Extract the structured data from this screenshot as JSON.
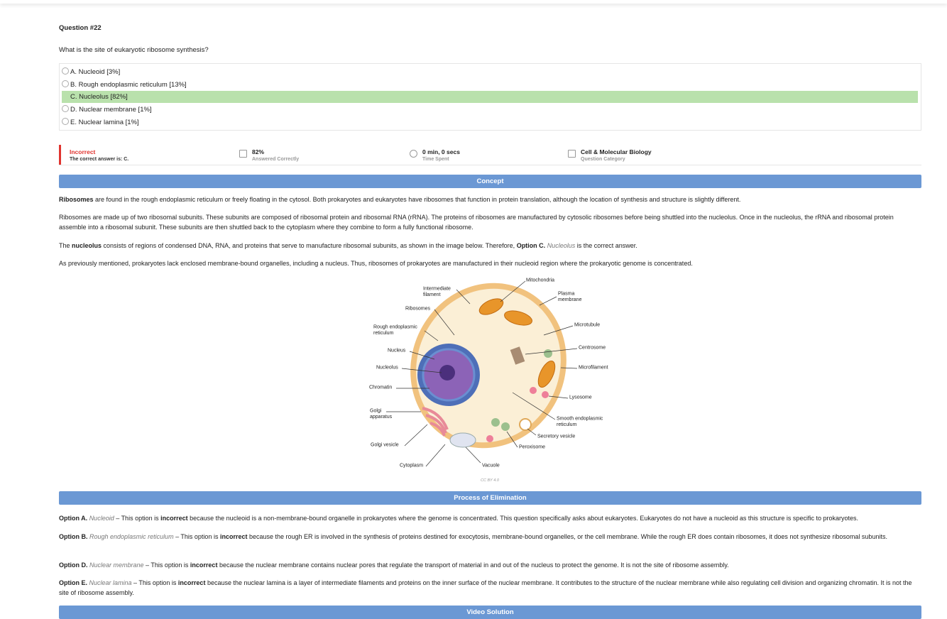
{
  "question": {
    "number": "Question #22",
    "text": "What is the site of eukaryotic ribosome synthesis?",
    "options": [
      "A. Nucleoid [3%]",
      "B. Rough endoplasmic reticulum [13%]",
      "C. Nucleolus [82%]",
      "D. Nuclear membrane [1%]",
      "E. Nuclear lamina [1%]"
    ],
    "highlighted_option": 2
  },
  "stats": [
    {
      "value": "Incorrect",
      "label": "The correct answer is: C."
    },
    {
      "value": "82%",
      "label": "Answered Correctly"
    },
    {
      "value": "0 min, 0 secs",
      "label": "Time Spent"
    },
    {
      "value": "Cell & Molecular Biology",
      "label": "Question Category"
    }
  ],
  "concept": {
    "title": "Concept",
    "paragraphs": [
      [
        {
          "text": "Ribosomes",
          "style": "bold"
        },
        " are found in the rough endoplasmic reticulum or freely floating in the cytosol. Both prokaryotes and eukaryotes have ribosomes that function in protein translation, although the location of synthesis and structure is slightly different."
      ],
      [
        "Ribosomes are made up of two ribosomal subunits. These subunits are composed of ribosomal protein and ribosomal RNA (rRNA). The proteins of ribosomes are manufactured by cytosolic ribosomes before being shuttled into the nucleolus. Once in the nucleolus, the rRNA and ribosomal protein assemble into a ribosomal subunit. These subunits are then shuttled back to the cytoplasm where they combine to form a fully functional ribosome."
      ],
      [
        "The ",
        {
          "text": "nucleolus",
          "style": "bold"
        },
        " consists of regions of condensed DNA, RNA, and proteins that serve to manufacture ribosomal subunits, as shown in the image below. Therefore, ",
        {
          "text": "Option C.",
          "style": "bold"
        },
        " ",
        {
          "text": "Nucleolus",
          "style": "italic"
        },
        " is the correct answer."
      ],
      [
        "As previously mentioned, prokaryotes lack enclosed membrane-bound organelles, including a nucleus. Thus, ribosomes of prokaryotes are manufactured in their nucleoid region where the prokaryotic genome is concentrated."
      ]
    ]
  },
  "diagram": {
    "labels": [
      [
        "Mitochondria"
      ],
      [
        "Intermediate",
        "filament"
      ],
      [
        "Plasma",
        "membrane"
      ],
      [
        "Ribosomes"
      ],
      [
        "Rough endoplasmic",
        "reticulum"
      ],
      [
        "Microtubule"
      ],
      [
        "Nucleus"
      ],
      [
        "Centrosome"
      ],
      [
        "Nucleolus"
      ],
      [
        "Microfilament"
      ],
      [
        "Chromatin"
      ],
      [
        "Lysosome"
      ],
      [
        "Golgi",
        "apparatus"
      ],
      [
        "Smooth endoplasmic",
        "reticulum"
      ],
      [
        "Secretory vesicle"
      ],
      [
        "Golgi vesicle"
      ],
      [
        "Peroxisome"
      ],
      [
        "Cytoplasm"
      ],
      [
        "Vacuole"
      ]
    ],
    "credit": "CC BY 4.0"
  },
  "elimination": {
    "title": "Process of Elimination",
    "paragraphs": [
      [
        {
          "text": "Option A.",
          "style": "bold"
        },
        " ",
        {
          "text": "Nucleoid",
          "style": "italic"
        },
        " – This option is ",
        {
          "text": "incorrect",
          "style": "bold"
        },
        " because the nucleoid is a non-membrane-bound organelle in prokaryotes where the genome is concentrated. This question specifically asks about eukaryotes. Eukaryotes do not have a nucleoid as this structure is specific to prokaryotes."
      ],
      [
        {
          "text": "Option B.",
          "style": "bold"
        },
        " ",
        {
          "text": "Rough endoplasmic reticulum",
          "style": "italic"
        },
        " – This option is ",
        {
          "text": "incorrect",
          "style": "bold"
        },
        " because the rough ER is involved in the synthesis of proteins destined for exocytosis, membrane-bound organelles, or the cell membrane. While the rough ER does contain ribosomes, it does not synthesize ribosomal subunits."
      ],
      [
        {
          "text": "Option D.",
          "style": "bold"
        },
        " ",
        {
          "text": "Nuclear membrane",
          "style": "italic"
        },
        " – This option is ",
        {
          "text": "incorrect",
          "style": "bold"
        },
        " because the nuclear membrane contains nuclear pores that regulate the transport of material in and out of the nucleus to protect the genome. It is not the site of ribosome assembly."
      ],
      [
        {
          "text": "Option E.",
          "style": "bold"
        },
        " ",
        {
          "text": "Nuclear lamina",
          "style": "italic"
        },
        " – This option is ",
        {
          "text": "incorrect",
          "style": "bold"
        },
        " because the nuclear lamina is a layer of intermediate filaments and proteins on the inner surface of the nuclear membrane. It contributes to the structure of the nuclear membrane while also regulating cell division and organizing chromatin. It is not the site of ribosome assembly."
      ]
    ]
  },
  "video": {
    "title": "Video Solution"
  }
}
